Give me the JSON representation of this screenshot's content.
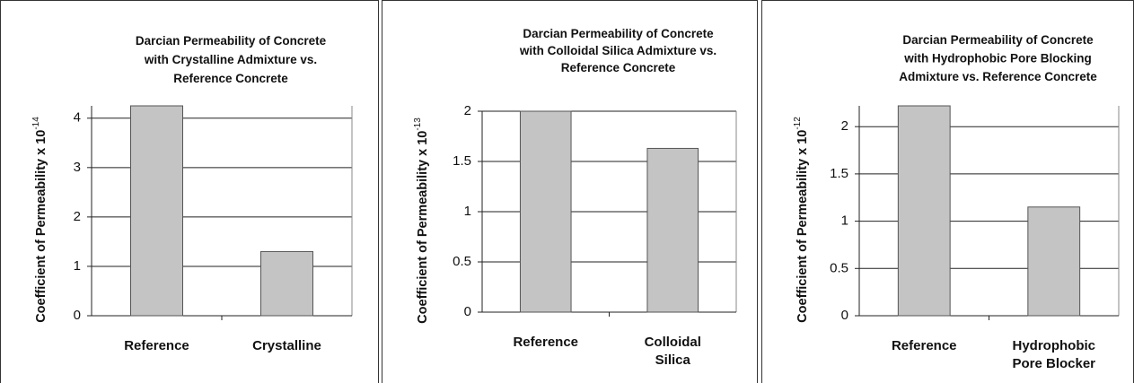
{
  "chart_data": [
    {
      "type": "bar",
      "title": "Darcian Permeability of Concrete\nwith Crystalline Admixture vs.\nReference Concrete",
      "ylabel": {
        "text": "Coefficient of Permeability x 10",
        "exponent": "-14"
      },
      "categories": [
        "Reference",
        "Crystalline"
      ],
      "values": [
        4.25,
        1.3
      ],
      "color": "#c4c4c4",
      "ylim": [
        0,
        4.25
      ],
      "yticks": [
        0,
        1,
        2,
        3,
        4
      ],
      "grid": true
    },
    {
      "type": "bar",
      "title": "Darcian Permeability of Concrete\nwith Colloidal Silica Admixture vs.\nReference Concrete",
      "ylabel": {
        "text": "Coefficient of Permeability x 10",
        "exponent": "-13"
      },
      "categories": [
        "Reference",
        "Colloidal\nSilica"
      ],
      "values": [
        2.0,
        1.63
      ],
      "color": "#c4c4c4",
      "ylim": [
        0,
        2
      ],
      "yticks": [
        0,
        0.5,
        1,
        1.5,
        2
      ],
      "grid": true
    },
    {
      "type": "bar",
      "title": "Darcian Permeability of Concrete\nwith Hydrophobic  Pore Blocking\nAdmixture vs. Reference Concrete",
      "ylabel": {
        "text": "Coefficient of Permeability x 10",
        "exponent": "-12"
      },
      "categories": [
        "Reference",
        "Hydrophobic\nPore Blocker"
      ],
      "values": [
        2.22,
        1.15
      ],
      "color": "#c4c4c4",
      "ylim": [
        0,
        2.22
      ],
      "yticks": [
        0,
        0.5,
        1,
        1.5,
        2
      ],
      "grid": true
    }
  ]
}
